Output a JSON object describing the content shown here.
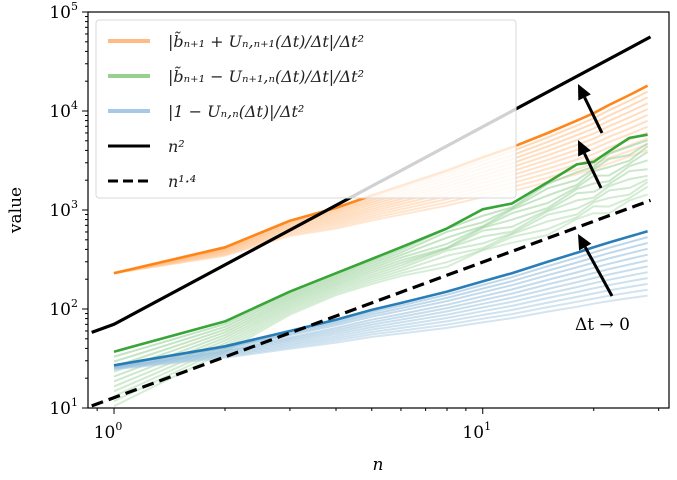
{
  "chart_data": {
    "type": "line",
    "xlabel": "n",
    "ylabel": "value",
    "xscale": "log",
    "yscale": "log",
    "xlim": [
      0.85,
      32
    ],
    "ylim": [
      10,
      100000
    ],
    "grid": false,
    "legend_position": "top-left",
    "x_ticks": [
      {
        "value": 1,
        "base": "10",
        "exp": "0"
      },
      {
        "value": 10,
        "base": "10",
        "exp": "1"
      }
    ],
    "y_ticks": [
      {
        "value": 10,
        "base": "10",
        "exp": "1"
      },
      {
        "value": 100,
        "base": "10",
        "exp": "2"
      },
      {
        "value": 1000,
        "base": "10",
        "exp": "3"
      },
      {
        "value": 10000,
        "base": "10",
        "exp": "4"
      },
      {
        "value": 100000,
        "base": "10",
        "exp": "5"
      }
    ],
    "x": [
      1,
      2,
      3,
      4,
      5,
      6,
      8,
      10,
      12,
      15,
      18,
      20,
      22,
      25,
      28
    ],
    "families": [
      {
        "name": "|b̃ₙ₊₁ + Uₙ,ₙ₊₁(Δt)/Δt|/Δt²",
        "color": "#ff7f0e",
        "values": [
          230,
          420,
          780,
          1050,
          1400,
          1750,
          2500,
          3400,
          4300,
          6000,
          8000,
          9500,
          11500,
          14500,
          18000
        ]
      },
      {
        "name": "|b̃ₙ₊₁ − Uₙ₊₁,ₙ(Δt)/Δt|/Δt²",
        "color": "#2ca02c",
        "values": [
          37,
          75,
          150,
          230,
          320,
          420,
          650,
          950,
          1250,
          1900,
          2700,
          3300,
          3900,
          5000,
          6200
        ]
      },
      {
        "name": "|1 − Uₙ,ₙ(Δt)|/Δt²",
        "color": "#1f77b4",
        "values": [
          27,
          42,
          60,
          78,
          98,
          115,
          150,
          190,
          230,
          300,
          370,
          420,
          470,
          540,
          610
        ]
      }
    ],
    "reference_lines": [
      {
        "name": "n²",
        "style": "solid",
        "x": [
          0.87,
          1.0,
          28.5
        ],
        "values": [
          58,
          70,
          56000
        ]
      },
      {
        "name": "n¹·⁴",
        "style": "dashed",
        "x": [
          0.87,
          28.5
        ],
        "values": [
          10.5,
          1250
        ]
      }
    ],
    "annotation": {
      "text": "Δt → 0"
    },
    "legend": [
      {
        "label": "|b̃ₙ₊₁ + Uₙ,ₙ₊₁(Δt)/Δt|/Δt²",
        "color": "#ffbb85"
      },
      {
        "label": "|b̃ₙ₊₁ − Uₙ₊₁,ₙ(Δt)/Δt|/Δt²",
        "color": "#98d18f"
      },
      {
        "label": "|1 − Uₙ,ₙ(Δt)|/Δt²",
        "color": "#a8c9e6"
      },
      {
        "label": "n²",
        "color": "#000000"
      },
      {
        "label": "n¹·⁴",
        "color": "#000000"
      }
    ]
  }
}
